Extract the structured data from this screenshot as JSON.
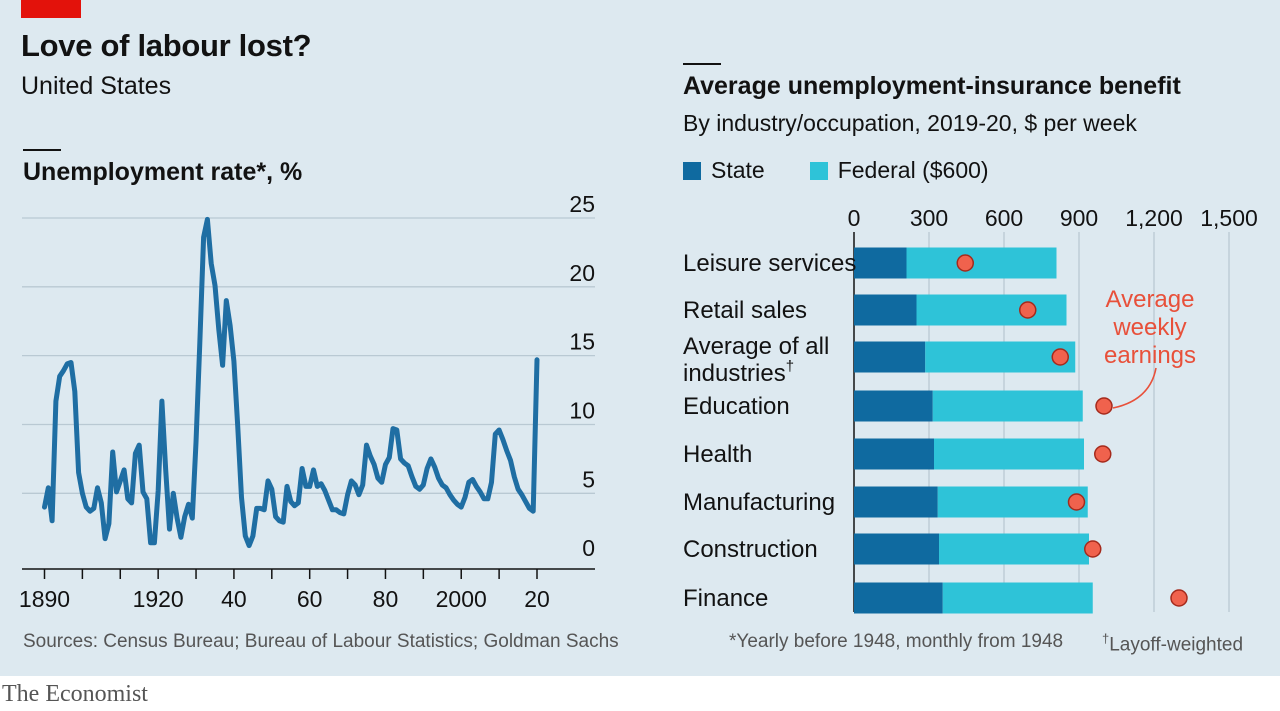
{
  "header": {
    "title": "Love of labour lost?",
    "subtitle": "United States"
  },
  "colors": {
    "background": "#dde9f0",
    "accent_red": "#e3120b",
    "line": "#1f6ea3",
    "state": "#0f6aa0",
    "federal": "#2ec3d8",
    "earnings_dot": "#f0624d"
  },
  "chart_data": [
    {
      "type": "line",
      "title": "Unemployment rate*, %",
      "x": [
        1890,
        1891,
        1892,
        1893,
        1894,
        1895,
        1896,
        1897,
        1898,
        1899,
        1900,
        1901,
        1902,
        1903,
        1904,
        1905,
        1906,
        1907,
        1908,
        1909,
        1910,
        1911,
        1912,
        1913,
        1914,
        1915,
        1916,
        1917,
        1918,
        1919,
        1920,
        1921,
        1922,
        1923,
        1924,
        1925,
        1926,
        1927,
        1928,
        1929,
        1930,
        1931,
        1932,
        1933,
        1934,
        1935,
        1936,
        1937,
        1938,
        1939,
        1940,
        1941,
        1942,
        1943,
        1944,
        1945,
        1946,
        1947,
        1948,
        1949,
        1950,
        1951,
        1952,
        1953,
        1954,
        1955,
        1956,
        1957,
        1958,
        1959,
        1960,
        1961,
        1962,
        1963,
        1964,
        1965,
        1966,
        1967,
        1968,
        1969,
        1970,
        1971,
        1972,
        1973,
        1974,
        1975,
        1976,
        1977,
        1978,
        1979,
        1980,
        1981,
        1982,
        1983,
        1984,
        1985,
        1986,
        1987,
        1988,
        1989,
        1990,
        1991,
        1992,
        1993,
        1994,
        1995,
        1996,
        1997,
        1998,
        1999,
        2000,
        2001,
        2002,
        2003,
        2004,
        2005,
        2006,
        2007,
        2008,
        2009,
        2010,
        2011,
        2012,
        2013,
        2014,
        2015,
        2016,
        2017,
        2018,
        2019,
        2020
      ],
      "y": [
        4.0,
        5.4,
        3.0,
        11.7,
        13.5,
        13.9,
        14.4,
        14.5,
        12.4,
        6.5,
        5.0,
        4.0,
        3.7,
        3.9,
        5.4,
        4.3,
        1.7,
        2.8,
        8.0,
        5.1,
        5.9,
        6.7,
        4.6,
        4.3,
        7.9,
        8.5,
        5.1,
        4.6,
        1.4,
        1.4,
        5.2,
        11.7,
        6.7,
        2.4,
        5.0,
        3.2,
        1.8,
        3.3,
        4.2,
        3.2,
        8.7,
        15.9,
        23.6,
        24.9,
        21.7,
        20.1,
        16.9,
        14.3,
        19.0,
        17.2,
        14.6,
        9.9,
        4.7,
        1.9,
        1.2,
        1.9,
        3.9,
        3.9,
        3.8,
        5.9,
        5.3,
        3.3,
        3.0,
        2.9,
        5.5,
        4.4,
        4.1,
        4.3,
        6.8,
        5.5,
        5.5,
        6.7,
        5.5,
        5.7,
        5.2,
        4.5,
        3.8,
        3.8,
        3.6,
        3.5,
        4.9,
        5.9,
        5.6,
        4.9,
        5.6,
        8.5,
        7.7,
        7.1,
        6.1,
        5.8,
        7.1,
        7.6,
        9.7,
        9.6,
        7.5,
        7.2,
        7.0,
        6.2,
        5.5,
        5.3,
        5.6,
        6.8,
        7.5,
        6.9,
        6.1,
        5.6,
        5.4,
        4.9,
        4.5,
        4.2,
        4.0,
        4.7,
        5.8,
        6.0,
        5.5,
        5.1,
        4.6,
        4.6,
        5.8,
        9.3,
        9.6,
        8.9,
        8.1,
        7.4,
        6.2,
        5.3,
        4.9,
        4.4,
        3.9,
        3.7,
        14.7
      ],
      "xlim": [
        1888,
        2029
      ],
      "ylim": [
        -0.5,
        25
      ],
      "ytick_values": [
        0,
        5,
        10,
        15,
        20,
        25
      ],
      "ytick_labels": [
        "0",
        "5",
        "10",
        "15",
        "20",
        "25"
      ],
      "xtick_values": [
        1890,
        1920,
        1940,
        1960,
        1980,
        2000,
        2020
      ],
      "xtick_labels": [
        "1890",
        "1920",
        "40",
        "60",
        "80",
        "2000",
        "20"
      ],
      "grid": true
    },
    {
      "type": "bar",
      "stacked": true,
      "orientation": "horizontal",
      "title": "Average unemployment-insurance benefit",
      "subtitle": "By industry/occupation, 2019-20, $ per week",
      "categories": [
        "Leisure services",
        "Retail sales",
        "Average of all industries†",
        "Education",
        "Health",
        "Manufacturing",
        "Construction",
        "Finance"
      ],
      "series": [
        {
          "name": "State",
          "values": [
            210,
            250,
            285,
            315,
            320,
            335,
            340,
            355
          ]
        },
        {
          "name": "Federal ($600)",
          "values": [
            600,
            600,
            600,
            600,
            600,
            600,
            600,
            600
          ]
        }
      ],
      "markers": {
        "name": "Average weekly earnings",
        "values": [
          445,
          695,
          825,
          1000,
          995,
          890,
          955,
          1300
        ]
      },
      "xlim": [
        0,
        1500
      ],
      "xtick_values": [
        0,
        300,
        600,
        900,
        1200,
        1500
      ],
      "xtick_labels": [
        "0",
        "300",
        "600",
        "900",
        "1,200",
        "1,500"
      ],
      "grid": true,
      "legend_position": "top-left"
    }
  ],
  "footnotes": {
    "sources": "Sources: Census Bureau; Bureau of Labour Statistics; Goldman Sachs",
    "yearly": "*Yearly before 1948, monthly from 1948",
    "dagger_mark": "†",
    "layoff": "Layoff-weighted"
  },
  "brand": "The Economist"
}
